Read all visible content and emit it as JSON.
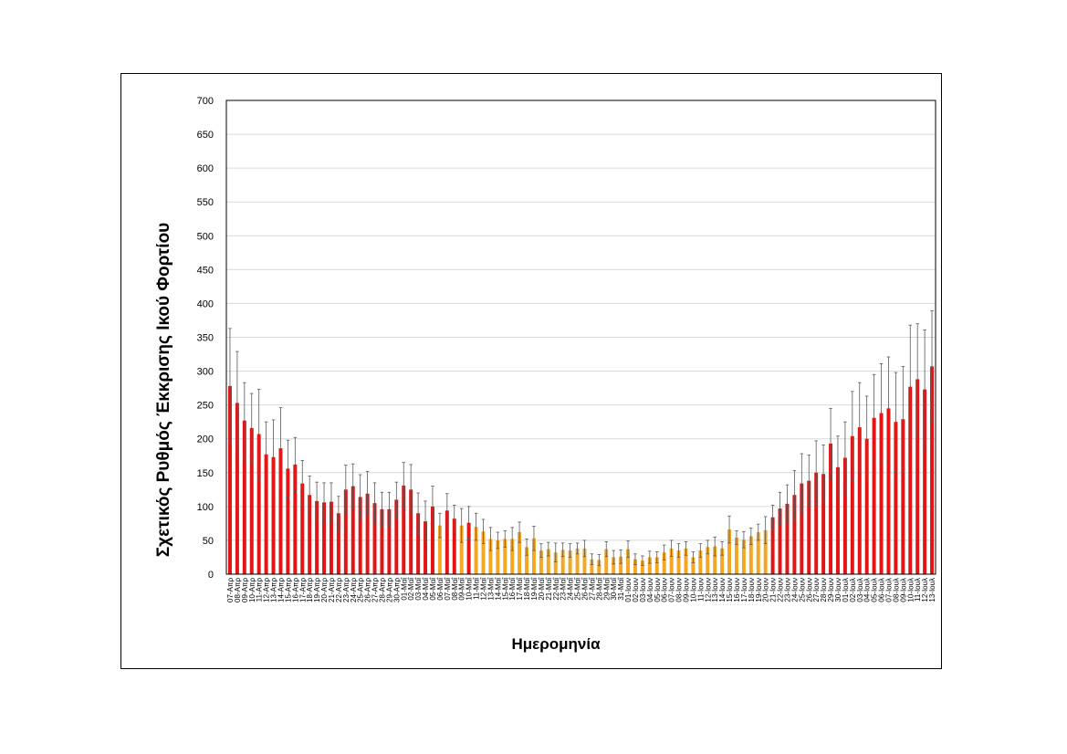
{
  "colors": {
    "high": "#e31414",
    "low": "#f5a623",
    "grid": "#d9d9d9",
    "errorbar": "#595959"
  },
  "chart_data": {
    "type": "bar",
    "title": "",
    "xlabel": "Ημερομηνία",
    "ylabel": "Σχετικός Ρυθμός Έκκρισης Ικού Φορτίου",
    "ylim": [
      0,
      700
    ],
    "yticks": [
      0,
      50,
      100,
      150,
      200,
      250,
      300,
      350,
      400,
      450,
      500,
      550,
      600,
      650,
      700
    ],
    "grid": true,
    "categories": [
      "07-Απρ",
      "08-Απρ",
      "09-Απρ",
      "10-Απρ",
      "11-Απρ",
      "12-Απρ",
      "13-Απρ",
      "14-Απρ",
      "15-Απρ",
      "16-Απρ",
      "17-Απρ",
      "18-Απρ",
      "19-Απρ",
      "20-Απρ",
      "21-Απρ",
      "22-Απρ",
      "23-Απρ",
      "24-Απρ",
      "25-Απρ",
      "26-Απρ",
      "27-Απρ",
      "28-Απρ",
      "29-Απρ",
      "30-Απρ",
      "01-Μαΐ",
      "02-Μαΐ",
      "03-Μαΐ",
      "04-Μαΐ",
      "05-Μαΐ",
      "06-Μαΐ",
      "07-Μαΐ",
      "08-Μαΐ",
      "09-Μαΐ",
      "10-Μαΐ",
      "11-Μαΐ",
      "12-Μαΐ",
      "13-Μαΐ",
      "14-Μαΐ",
      "15-Μαΐ",
      "16-Μαΐ",
      "17-Μαΐ",
      "18-Μαΐ",
      "19-Μαΐ",
      "20-Μαΐ",
      "21-Μαΐ",
      "22-Μαΐ",
      "23-Μαΐ",
      "24-Μαΐ",
      "25-Μαΐ",
      "26-Μαΐ",
      "27-Μαΐ",
      "28-Μαΐ",
      "29-Μαΐ",
      "30-Μαΐ",
      "31-Μαΐ",
      "01-Ιουν",
      "02-Ιουν",
      "03-Ιουν",
      "04-Ιουν",
      "05-Ιουν",
      "06-Ιουν",
      "07-Ιουν",
      "08-Ιουν",
      "09-Ιουν",
      "10-Ιουν",
      "11-Ιουν",
      "12-Ιουν",
      "13-Ιουν",
      "14-Ιουν",
      "15-Ιουν",
      "16-Ιουν",
      "17-Ιουν",
      "18-Ιουν",
      "19-Ιουν",
      "20-Ιουν",
      "21-Ιουν",
      "22-Ιουν",
      "23-Ιουν",
      "24-Ιουν",
      "25-Ιουν",
      "26-Ιουν",
      "27-Ιουν",
      "28-Ιουν",
      "29-Ιουν",
      "30-Ιουν",
      "01-Ιουλ",
      "02-Ιουλ",
      "03-Ιουλ",
      "04-Ιουλ",
      "05-Ιουλ",
      "06-Ιουλ",
      "07-Ιουλ",
      "08-Ιουλ",
      "09-Ιουλ",
      "10-Ιουλ",
      "11-Ιουλ",
      "12-Ιουλ",
      "13-Ιουλ"
    ],
    "values": [
      278,
      253,
      227,
      216,
      207,
      177,
      173,
      186,
      156,
      162,
      134,
      117,
      108,
      106,
      107,
      90,
      125,
      130,
      114,
      119,
      105,
      96,
      96,
      110,
      131,
      125,
      90,
      78,
      100,
      72,
      94,
      82,
      72,
      76,
      70,
      63,
      52,
      50,
      52,
      52,
      62,
      40,
      53,
      35,
      37,
      32,
      36,
      35,
      38,
      38,
      22,
      21,
      37,
      25,
      26,
      37,
      22,
      20,
      25,
      25,
      32,
      38,
      35,
      38,
      25,
      35,
      40,
      41,
      38,
      66,
      54,
      51,
      56,
      62,
      65,
      84,
      97,
      104,
      117,
      134,
      138,
      150,
      148,
      193,
      158,
      172,
      204,
      217,
      200,
      231,
      238,
      245,
      225,
      229,
      277,
      288,
      273,
      307
    ],
    "error_plus": [
      85,
      76,
      56,
      51,
      66,
      48,
      55,
      60,
      42,
      40,
      34,
      28,
      28,
      29,
      28,
      25,
      36,
      33,
      33,
      33,
      30,
      25,
      25,
      26,
      34,
      37,
      30,
      30,
      30,
      18,
      25,
      20,
      25,
      24,
      20,
      18,
      17,
      12,
      12,
      17,
      15,
      12,
      18,
      10,
      10,
      14,
      10,
      10,
      8,
      12,
      8,
      8,
      11,
      10,
      10,
      12,
      8,
      7,
      9,
      8,
      11,
      12,
      10,
      10,
      8,
      10,
      10,
      14,
      10,
      20,
      10,
      12,
      12,
      12,
      20,
      18,
      24,
      28,
      36,
      44,
      38,
      47,
      43,
      52,
      46,
      53,
      66,
      66,
      63,
      64,
      73,
      76,
      73,
      78,
      91,
      82,
      88,
      82
    ],
    "error_minus": [
      85,
      76,
      56,
      51,
      66,
      48,
      55,
      60,
      42,
      40,
      34,
      28,
      28,
      29,
      28,
      25,
      36,
      33,
      33,
      33,
      30,
      25,
      25,
      26,
      34,
      37,
      30,
      30,
      30,
      18,
      25,
      20,
      25,
      24,
      20,
      18,
      17,
      12,
      12,
      17,
      15,
      12,
      18,
      10,
      10,
      14,
      10,
      10,
      8,
      12,
      8,
      8,
      11,
      10,
      10,
      12,
      8,
      7,
      9,
      8,
      11,
      12,
      10,
      10,
      8,
      10,
      10,
      14,
      10,
      20,
      10,
      12,
      12,
      12,
      20,
      18,
      24,
      28,
      36,
      44,
      38,
      47,
      43,
      52,
      46,
      53,
      66,
      66,
      63,
      64,
      73,
      76,
      73,
      78,
      91,
      82,
      88,
      82
    ],
    "threshold": 75
  }
}
